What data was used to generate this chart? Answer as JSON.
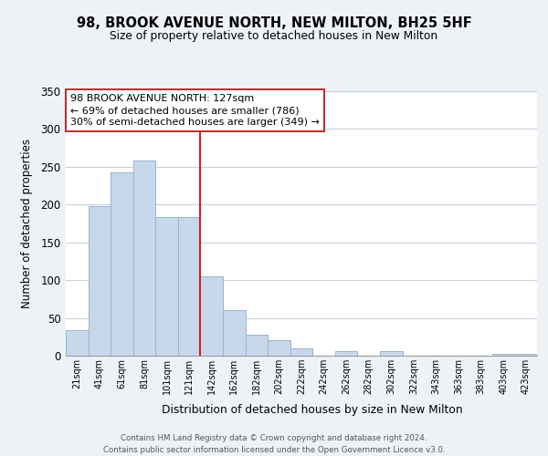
{
  "title": "98, BROOK AVENUE NORTH, NEW MILTON, BH25 5HF",
  "subtitle": "Size of property relative to detached houses in New Milton",
  "xlabel": "Distribution of detached houses by size in New Milton",
  "ylabel": "Number of detached properties",
  "bar_labels": [
    "21sqm",
    "41sqm",
    "61sqm",
    "81sqm",
    "101sqm",
    "121sqm",
    "142sqm",
    "162sqm",
    "182sqm",
    "202sqm",
    "222sqm",
    "242sqm",
    "262sqm",
    "282sqm",
    "302sqm",
    "322sqm",
    "343sqm",
    "363sqm",
    "383sqm",
    "403sqm",
    "423sqm"
  ],
  "bar_values": [
    34,
    198,
    242,
    258,
    183,
    183,
    105,
    60,
    28,
    20,
    10,
    0,
    6,
    0,
    6,
    0,
    0,
    0,
    0,
    2,
    2
  ],
  "bar_color": "#c8d8eb",
  "bar_edge_color": "#9ab4cc",
  "vline_color": "#cc2222",
  "annotation_title": "98 BROOK AVENUE NORTH: 127sqm",
  "annotation_line1": "← 69% of detached houses are smaller (786)",
  "annotation_line2": "30% of semi-detached houses are larger (349) →",
  "ylim": [
    0,
    350
  ],
  "yticks": [
    0,
    50,
    100,
    150,
    200,
    250,
    300,
    350
  ],
  "footer_line1": "Contains HM Land Registry data © Crown copyright and database right 2024.",
  "footer_line2": "Contains public sector information licensed under the Open Government Licence v3.0.",
  "background_color": "#eef2f7",
  "plot_bg_color": "#ffffff",
  "grid_color": "#c8d0dc"
}
